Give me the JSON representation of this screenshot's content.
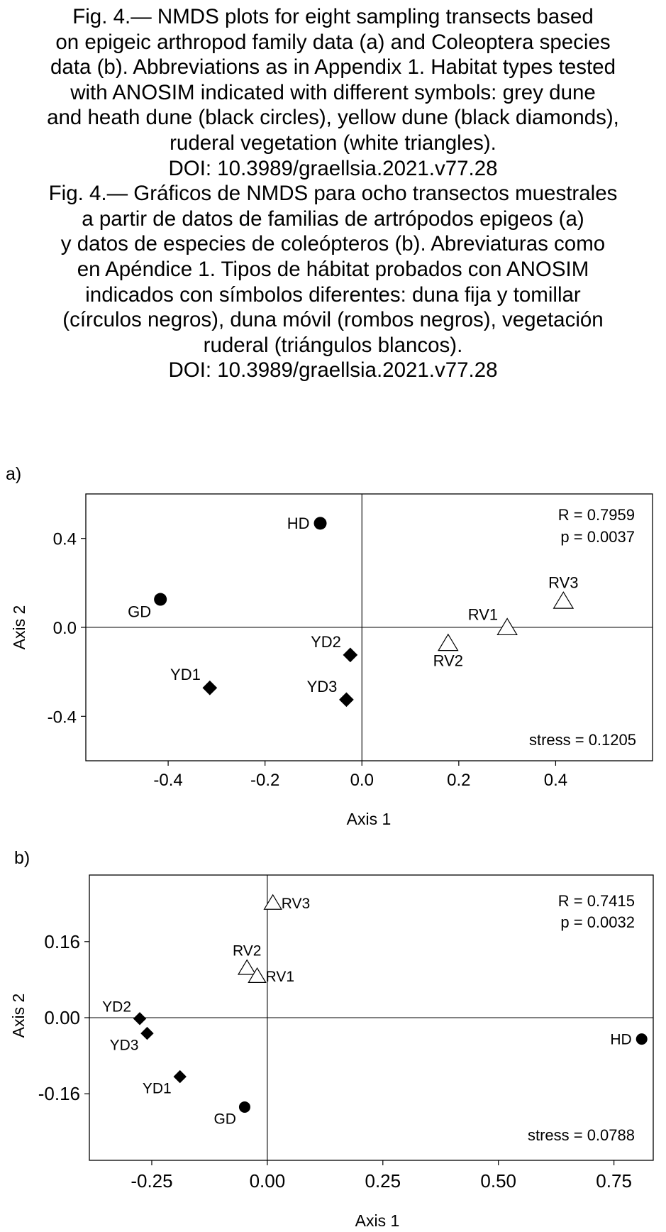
{
  "caption": {
    "lines": [
      "Fig. 4.— NMDS plots for eight sampling transects based",
      "on epigeic arthropod family data (a) and Coleoptera species",
      "data (b). Abbreviations as in Appendix 1. Habitat types tested",
      "with ANOSIM indicated with different symbols: grey dune",
      "and heath dune (black circles), yellow dune (black diamonds),",
      "ruderal vegetation (white triangles).",
      "DOI: 10.3989/graellsia.2021.v77.28",
      "Fig. 4.— Gráficos de NMDS para ocho transectos muestrales",
      "a partir de datos de familias de artrópodos epigeos (a)",
      "y datos de especies de coleópteros (b). Abreviaturas como",
      "en Apéndice 1. Tipos de hábitat probados con ANOSIM",
      "indicados con símbolos diferentes: duna fija y tomillar",
      "(círculos negros), duna móvil (rombos negros), vegetación",
      "ruderal (triángulos blancos).",
      "DOI: 10.3989/graellsia.2021.v77.28"
    ]
  },
  "chart_data": [
    {
      "type": "scatter",
      "panel_label": "a)",
      "xlabel": "Axis 1",
      "ylabel": "Axis 2",
      "xlim": [
        -0.57,
        0.6
      ],
      "ylim": [
        -0.6,
        0.6
      ],
      "xticks": [
        -0.4,
        -0.2,
        0.0,
        0.2,
        0.4
      ],
      "xtick_labels": [
        "-0.4",
        "-0.2",
        "0.0",
        "0.2",
        "0.4"
      ],
      "yticks": [
        0.4,
        0.0,
        -0.4
      ],
      "ytick_labels": [
        "0.4",
        "0.0",
        "-0.4"
      ],
      "zero_lines": true,
      "annotations": {
        "r": "R = 0.7959",
        "p": "p = 0.0037",
        "stress": "stress = 0.1205"
      },
      "points": [
        {
          "label": "HD",
          "x": -0.086,
          "y": 0.468,
          "marker": "circle",
          "label_pos": "left"
        },
        {
          "label": "GD",
          "x": -0.416,
          "y": 0.126,
          "marker": "circle",
          "label_pos": "below-left"
        },
        {
          "label": "YD2",
          "x": -0.024,
          "y": -0.124,
          "marker": "diamond",
          "label_pos": "above-left"
        },
        {
          "label": "YD1",
          "x": -0.314,
          "y": -0.272,
          "marker": "diamond",
          "label_pos": "above-left"
        },
        {
          "label": "YD3",
          "x": -0.032,
          "y": -0.325,
          "marker": "diamond",
          "label_pos": "above-left"
        },
        {
          "label": "RV1",
          "x": 0.3,
          "y": -0.002,
          "marker": "triangle",
          "label_pos": "above-left"
        },
        {
          "label": "RV2",
          "x": 0.178,
          "y": -0.073,
          "marker": "triangle",
          "label_pos": "below"
        },
        {
          "label": "RV3",
          "x": 0.416,
          "y": 0.117,
          "marker": "triangle",
          "label_pos": "above"
        }
      ]
    },
    {
      "type": "scatter",
      "panel_label": "b)",
      "xlabel": "Axis 1",
      "ylabel": "Axis 2",
      "xlim": [
        -0.385,
        0.835
      ],
      "ylim": [
        -0.3,
        0.3
      ],
      "xticks": [
        -0.25,
        0.0,
        0.25,
        0.5,
        0.75
      ],
      "xtick_labels": [
        "-0.25",
        "0.00",
        "0.25",
        "0.50",
        "0.75"
      ],
      "yticks": [
        0.16,
        0.0,
        -0.16
      ],
      "ytick_labels": [
        "0.16",
        "0.00",
        "-0.16"
      ],
      "zero_lines": true,
      "annotations": {
        "r": "R = 0.7415",
        "p": "p = 0.0032",
        "stress": "stress = 0.0788"
      },
      "points": [
        {
          "label": "RV3",
          "x": 0.012,
          "y": 0.241,
          "marker": "triangle",
          "label_pos": "right"
        },
        {
          "label": "RV2",
          "x": -0.044,
          "y": 0.104,
          "marker": "triangle",
          "label_pos": "above"
        },
        {
          "label": "RV1",
          "x": -0.022,
          "y": 0.087,
          "marker": "triangle",
          "label_pos": "right"
        },
        {
          "label": "YD2",
          "x": -0.276,
          "y": -0.002,
          "marker": "diamond",
          "label_pos": "above-left"
        },
        {
          "label": "YD3",
          "x": -0.26,
          "y": -0.033,
          "marker": "diamond",
          "label_pos": "below-left"
        },
        {
          "label": "YD1",
          "x": -0.189,
          "y": -0.124,
          "marker": "diamond",
          "label_pos": "below-left"
        },
        {
          "label": "GD",
          "x": -0.049,
          "y": -0.188,
          "marker": "circle",
          "label_pos": "below-left"
        },
        {
          "label": "HD",
          "x": 0.81,
          "y": -0.045,
          "marker": "circle",
          "label_pos": "left"
        }
      ]
    }
  ]
}
